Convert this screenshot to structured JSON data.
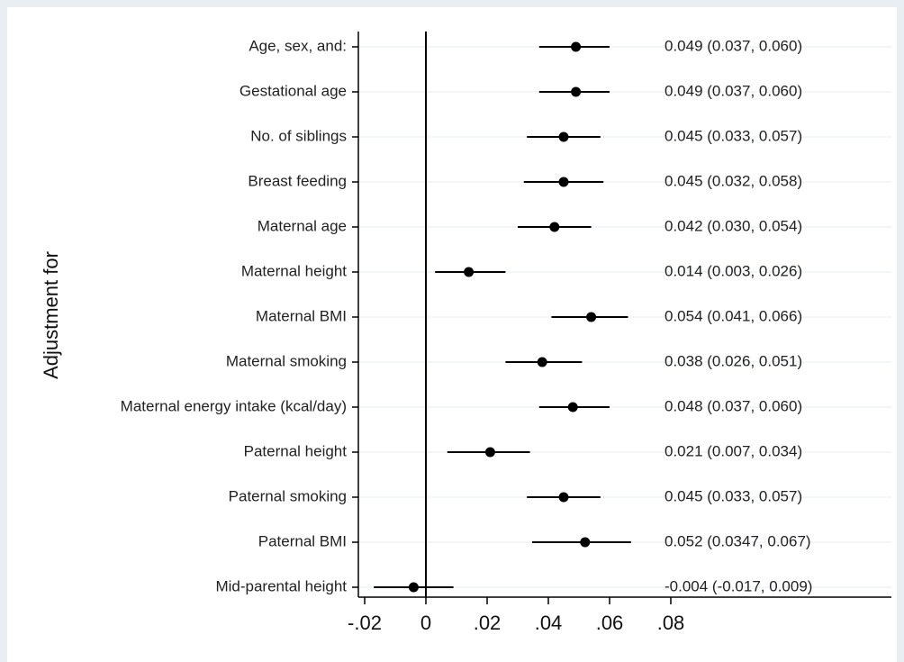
{
  "chart_data": {
    "type": "forest",
    "ylabel": "Adjustment for",
    "xlim": [
      -0.02,
      0.08
    ],
    "xticks": [
      "-.02",
      "0",
      ".02",
      ".04",
      ".06",
      ".08"
    ],
    "xtick_values": [
      -0.02,
      0,
      0.02,
      0.04,
      0.06,
      0.08
    ],
    "reference_line": 0,
    "grid": true,
    "rows": [
      {
        "label": "Age, sex, and:",
        "estimate": 0.049,
        "lower": 0.037,
        "upper": 0.06,
        "text": "0.049 (0.037, 0.060)"
      },
      {
        "label": "Gestational age",
        "estimate": 0.049,
        "lower": 0.037,
        "upper": 0.06,
        "text": "0.049 (0.037, 0.060)"
      },
      {
        "label": "No. of siblings",
        "estimate": 0.045,
        "lower": 0.033,
        "upper": 0.057,
        "text": "0.045 (0.033, 0.057)"
      },
      {
        "label": "Breast feeding",
        "estimate": 0.045,
        "lower": 0.032,
        "upper": 0.058,
        "text": "0.045 (0.032, 0.058)"
      },
      {
        "label": "Maternal age",
        "estimate": 0.042,
        "lower": 0.03,
        "upper": 0.054,
        "text": "0.042 (0.030, 0.054)"
      },
      {
        "label": "Maternal height",
        "estimate": 0.014,
        "lower": 0.003,
        "upper": 0.026,
        "text": "0.014 (0.003, 0.026)"
      },
      {
        "label": "Maternal BMI",
        "estimate": 0.054,
        "lower": 0.041,
        "upper": 0.066,
        "text": "0.054 (0.041, 0.066)"
      },
      {
        "label": "Maternal smoking",
        "estimate": 0.038,
        "lower": 0.026,
        "upper": 0.051,
        "text": "0.038 (0.026, 0.051)"
      },
      {
        "label": "Maternal energy intake (kcal/day)",
        "estimate": 0.048,
        "lower": 0.037,
        "upper": 0.06,
        "text": "0.048 (0.037, 0.060)"
      },
      {
        "label": "Paternal height",
        "estimate": 0.021,
        "lower": 0.007,
        "upper": 0.034,
        "text": "0.021 (0.007, 0.034)"
      },
      {
        "label": "Paternal smoking",
        "estimate": 0.045,
        "lower": 0.033,
        "upper": 0.057,
        "text": "0.045 (0.033, 0.057)"
      },
      {
        "label": "Paternal BMI",
        "estimate": 0.052,
        "lower": 0.0347,
        "upper": 0.067,
        "text": "0.052 (0.0347, 0.067)"
      },
      {
        "label": "Mid-parental height",
        "estimate": -0.004,
        "lower": -0.017,
        "upper": 0.009,
        "text": "-0.004 (-0.017, 0.009)"
      }
    ]
  },
  "colors": {
    "outer_background": "#e8eef2",
    "plot_background": "#ffffff",
    "gridline": "#e4ecf2",
    "marker": "#000000",
    "reference_line": "#000000"
  }
}
